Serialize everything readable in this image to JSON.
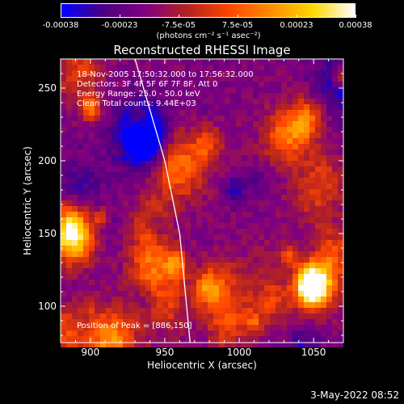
{
  "colorbar": {
    "ticks": [
      "-0.00038",
      "-0.00023",
      "-7.5e-05",
      "7.5e-05",
      "0.00023",
      "0.00038"
    ],
    "units": "(photons cm⁻² s⁻¹ asec⁻²)",
    "stops": [
      "#0000ff",
      "#4b0082",
      "#800080",
      "#b22222",
      "#ff4500",
      "#ff8c00",
      "#ffd700",
      "#ffffff"
    ]
  },
  "chart_data": {
    "type": "heatmap",
    "title": "Reconstructed RHESSI Image",
    "xlabel": "Heliocentric X (arcsec)",
    "ylabel": "Heliocentric Y (arcsec)",
    "xlim": [
      880,
      1070
    ],
    "ylim": [
      75,
      270
    ],
    "xticks": [
      900,
      950,
      1000,
      1050
    ],
    "yticks": [
      100,
      150,
      200,
      250
    ],
    "value_range": [
      -0.00038,
      0.00038
    ],
    "annotations": [
      "18-Nov-2005 17:50:32.000 to 17:56:32.000",
      "Detectors: 3F 4F 5F 6F 7F 8F, Att 0",
      "Energy Range: 25.0 - 50.0 keV",
      "Clean     Total counts: 9.44E+03"
    ],
    "peak_label": "Position of Peak = [886,150]",
    "peak": [
      886,
      150
    ],
    "limb_line": [
      [
        930,
        270
      ],
      [
        950,
        200
      ],
      [
        960,
        150
      ],
      [
        967,
        75
      ]
    ]
  },
  "footer": {
    "date": "3-May-2022 08:52"
  },
  "colors": {
    "axis": "#ffffff",
    "limb": "#ffffff",
    "background": "#000000"
  }
}
